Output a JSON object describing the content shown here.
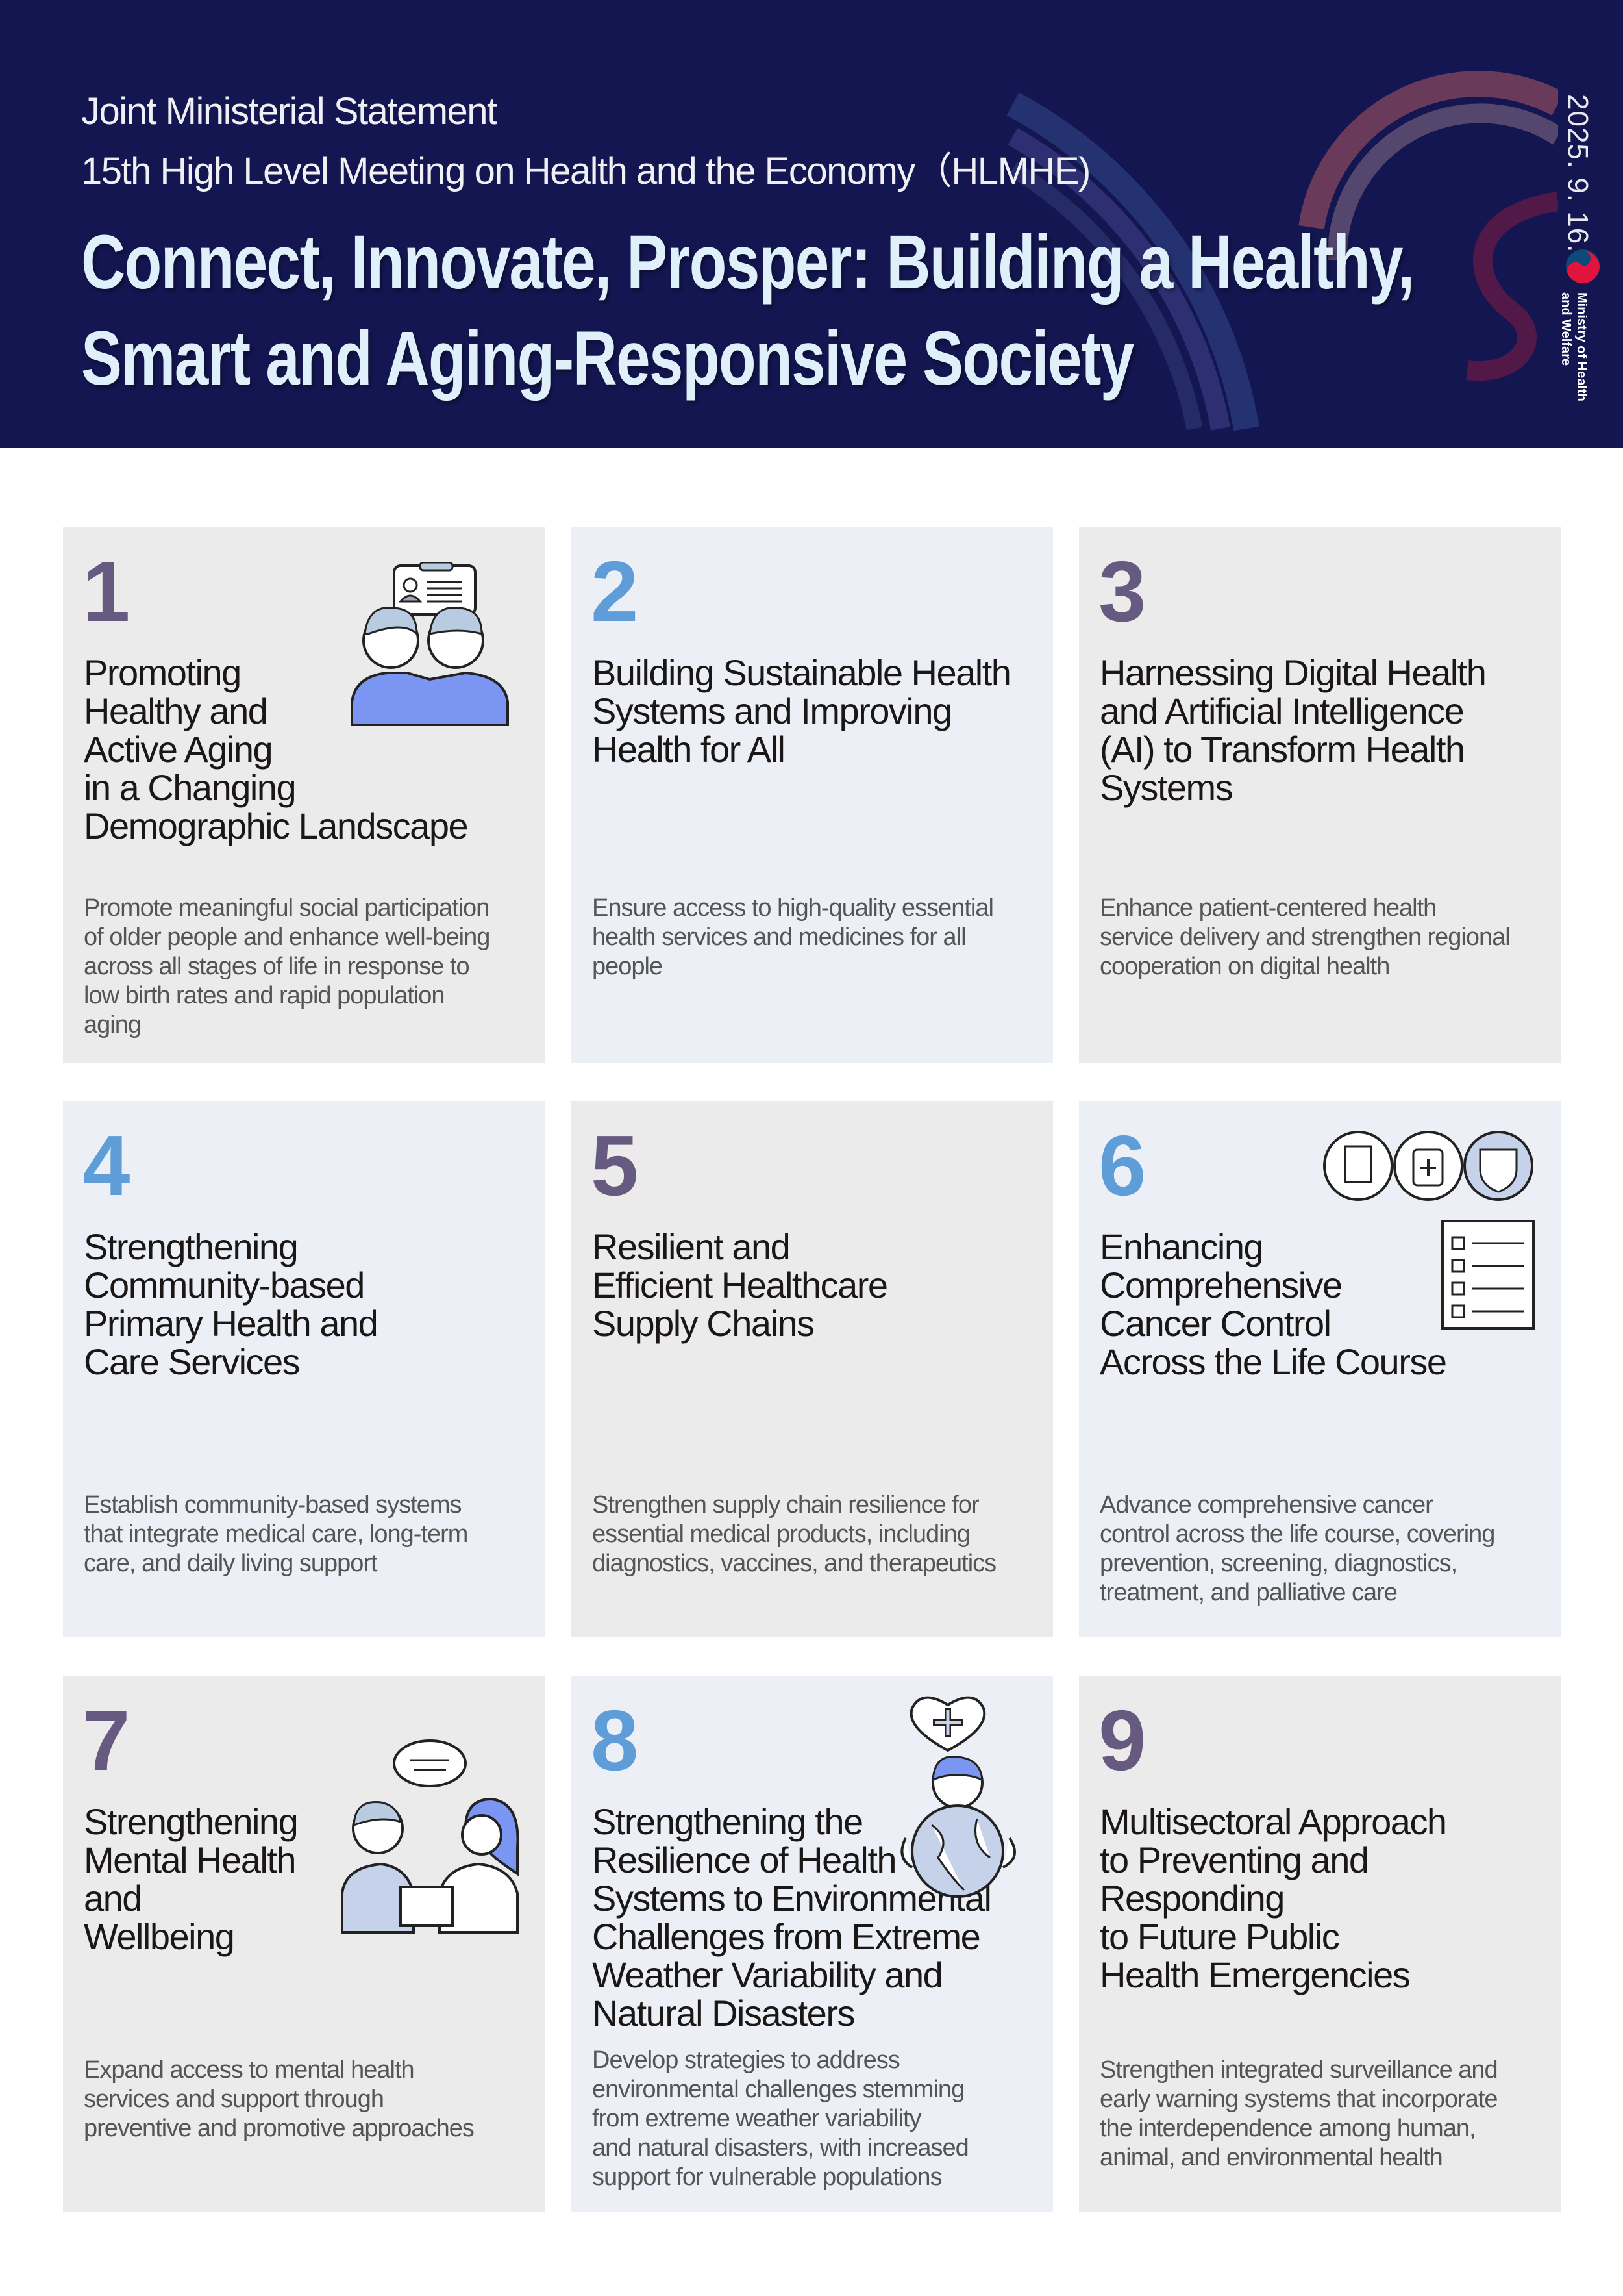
{
  "header": {
    "subtitle1": "Joint Ministerial Statement",
    "subtitle2": "15th High Level Meeting on Health and the Economy（HLMHE)",
    "title": "Connect, Innovate, Prosper: Building a Healthy,\nSmart and Aging-Responsive Society",
    "date": "2025. 9. 16.",
    "ministry": "Ministry of Health\nand Welfare"
  },
  "colors": {
    "header_bg": "#131650",
    "title": "#dff0fb",
    "number_purple": "#675a80",
    "number_blue": "#5f9dd8",
    "card_gray": "#ebebeb",
    "card_blue": "#ecf0f6"
  },
  "cards": [
    {
      "number": "1",
      "title": "Promoting\nHealthy and\nActive Aging\nin a Changing\nDemographic Landscape",
      "description": "Promote meaningful social participation\nof older people and enhance well-being\nacross all stages of life in response to\nlow birth rates and rapid population\naging",
      "icon": "elderly-couple-id-card-icon"
    },
    {
      "number": "2",
      "title": "Building Sustainable Health\nSystems and Improving\nHealth for All",
      "description": "Ensure access to high-quality essential\nhealth services and medicines for all\npeople"
    },
    {
      "number": "3",
      "title": "Harnessing Digital Health\nand Artificial Intelligence\n(AI) to Transform Health\nSystems",
      "description": "Enhance patient-centered health\nservice delivery and strengthen regional\ncooperation on digital health"
    },
    {
      "number": "4",
      "title": "Strengthening\nCommunity-based\nPrimary Health and\nCare Services",
      "description": "Establish community-based systems\nthat integrate medical care, long-term\ncare, and daily living support"
    },
    {
      "number": "5",
      "title": "Resilient and\nEfficient Healthcare\nSupply Chains",
      "description": "Strengthen supply chain resilience for\nessential medical products, including\ndiagnostics, vaccines, and therapeutics"
    },
    {
      "number": "6",
      "title": "Enhancing\nComprehensive\nCancer Control\nAcross the Life Course",
      "description": "Advance comprehensive cancer\ncontrol across the life course, covering\nprevention, screening, diagnostics,\ntreatment, and palliative care",
      "icon": "checklist-medical-icon"
    },
    {
      "number": "7",
      "title": "Strengthening\nMental Health\nand\nWellbeing",
      "description": "Expand access to mental health\nservices and support through\npreventive and promotive approaches",
      "icon": "counseling-icon"
    },
    {
      "number": "8",
      "title": "Strengthening the\nResilience of Health\nSystems to Environmental\nChallenges from Extreme\nWeather Variability and\nNatural Disasters",
      "description": "Develop strategies to address\nenvironmental challenges stemming\nfrom extreme weather variability\nand natural disasters, with increased\nsupport for vulnerable populations",
      "icon": "person-globe-heart-icon"
    },
    {
      "number": "9",
      "title": "Multisectoral Approach\nto Preventing and\nResponding\nto Future Public\nHealth Emergencies",
      "description": "Strengthen integrated surveillance and\nearly warning systems that incorporate\nthe interdependence among human,\nanimal, and environmental health"
    }
  ]
}
